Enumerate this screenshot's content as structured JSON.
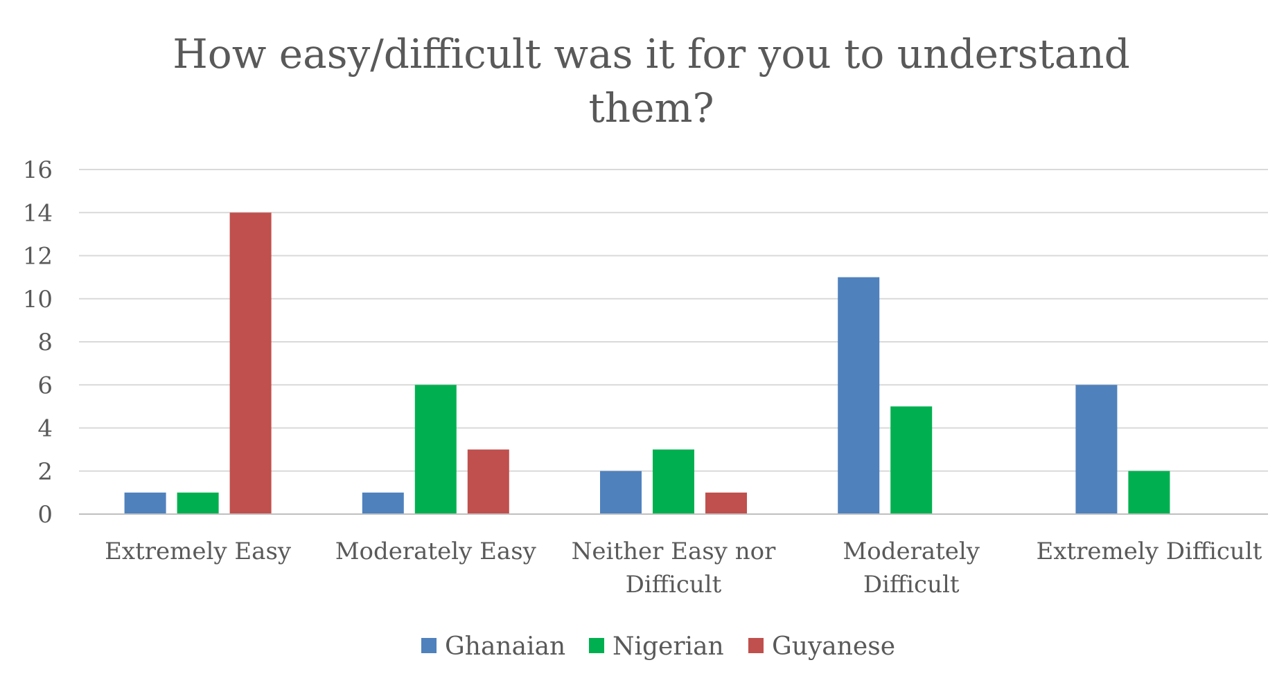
{
  "chart_data": {
    "type": "bar",
    "title_lines": [
      "How easy/difficult was it for you to understand",
      "them?"
    ],
    "categories": [
      [
        "Extremely Easy"
      ],
      [
        "Moderately Easy"
      ],
      [
        "Neither Easy nor",
        "Difficult"
      ],
      [
        "Moderately",
        "Difficult"
      ],
      [
        "Extremely Difficult"
      ]
    ],
    "series": [
      {
        "name": "Ghanaian",
        "color": "#4F81BD",
        "values": [
          1,
          1,
          2,
          11,
          6
        ]
      },
      {
        "name": "Nigerian",
        "color": "#00B050",
        "values": [
          1,
          6,
          3,
          5,
          2
        ]
      },
      {
        "name": "Guyanese",
        "color": "#C0504D",
        "values": [
          14,
          3,
          1,
          0,
          0
        ]
      }
    ],
    "ylim": [
      0,
      16
    ],
    "yticks": [
      0,
      2,
      4,
      6,
      8,
      10,
      12,
      14,
      16
    ],
    "grid": true,
    "legend_position": "bottom"
  }
}
